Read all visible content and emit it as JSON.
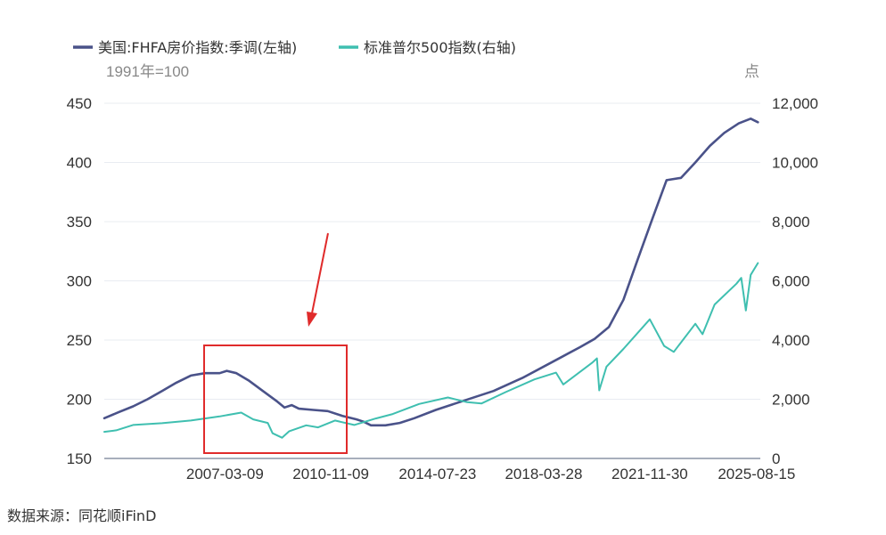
{
  "chart_data": {
    "type": "line",
    "legend_position": "top-left",
    "grid": true,
    "left_axis_unit": "1991年=100",
    "right_axis_unit": "点",
    "left_ylim": [
      150,
      450
    ],
    "left_ticks": [
      "450",
      "400",
      "350",
      "300",
      "250",
      "200",
      "150"
    ],
    "right_ylim": [
      0,
      12000
    ],
    "right_ticks": [
      "12,000",
      "10,000",
      "8,000",
      "6,000",
      "4,000",
      "2,000",
      "0"
    ],
    "x_range": [
      "2003-01-01",
      "2025-10-01"
    ],
    "x_ticks": [
      "2007-03-09",
      "2010-11-09",
      "2014-07-23",
      "2018-03-28",
      "2021-11-30",
      "2025-08-15"
    ],
    "series": [
      {
        "name": "美国:FHFA房价指数:季调(左轴)",
        "axis": "left",
        "color": "#4a5289",
        "points": [
          [
            "2003-01",
            184
          ],
          [
            "2003-07",
            189
          ],
          [
            "2004-01",
            194
          ],
          [
            "2004-07",
            200
          ],
          [
            "2005-01",
            207
          ],
          [
            "2005-07",
            214
          ],
          [
            "2006-01",
            220
          ],
          [
            "2006-07",
            222
          ],
          [
            "2007-01",
            222
          ],
          [
            "2007-04",
            224
          ],
          [
            "2007-08",
            222
          ],
          [
            "2008-01",
            216
          ],
          [
            "2008-07",
            207
          ],
          [
            "2009-01",
            198
          ],
          [
            "2009-04",
            193
          ],
          [
            "2009-07",
            195
          ],
          [
            "2009-10",
            192
          ],
          [
            "2010-04",
            191
          ],
          [
            "2010-10",
            190
          ],
          [
            "2011-04",
            186
          ],
          [
            "2011-10",
            183
          ],
          [
            "2012-01",
            181
          ],
          [
            "2012-04",
            178
          ],
          [
            "2012-10",
            178
          ],
          [
            "2013-04",
            180
          ],
          [
            "2013-10",
            184
          ],
          [
            "2014-07",
            191
          ],
          [
            "2015-07",
            199
          ],
          [
            "2016-07",
            207
          ],
          [
            "2017-07",
            218
          ],
          [
            "2018-07",
            231
          ],
          [
            "2019-07",
            244
          ],
          [
            "2020-01",
            251
          ],
          [
            "2020-07",
            261
          ],
          [
            "2021-01",
            284
          ],
          [
            "2021-07",
            318
          ],
          [
            "2022-01",
            352
          ],
          [
            "2022-07",
            385
          ],
          [
            "2023-01",
            387
          ],
          [
            "2023-07",
            400
          ],
          [
            "2024-01",
            414
          ],
          [
            "2024-07",
            425
          ],
          [
            "2025-01",
            433
          ],
          [
            "2025-06",
            437
          ],
          [
            "2025-09",
            434
          ]
        ]
      },
      {
        "name": "标准普尔500指数(右轴)",
        "axis": "right",
        "color": "#3fbfb0",
        "points": [
          [
            "2003-01",
            900
          ],
          [
            "2003-06",
            950
          ],
          [
            "2004-01",
            1130
          ],
          [
            "2005-01",
            1190
          ],
          [
            "2006-01",
            1280
          ],
          [
            "2007-01",
            1420
          ],
          [
            "2007-10",
            1550
          ],
          [
            "2008-03",
            1320
          ],
          [
            "2008-09",
            1200
          ],
          [
            "2008-11",
            850
          ],
          [
            "2009-03",
            700
          ],
          [
            "2009-06",
            920
          ],
          [
            "2010-01",
            1120
          ],
          [
            "2010-06",
            1050
          ],
          [
            "2011-01",
            1280
          ],
          [
            "2011-09",
            1130
          ],
          [
            "2012-06",
            1350
          ],
          [
            "2013-01",
            1500
          ],
          [
            "2013-12",
            1840
          ],
          [
            "2014-12",
            2060
          ],
          [
            "2015-08",
            1900
          ],
          [
            "2016-02",
            1860
          ],
          [
            "2016-12",
            2240
          ],
          [
            "2017-12",
            2670
          ],
          [
            "2018-09",
            2900
          ],
          [
            "2018-12",
            2500
          ],
          [
            "2019-12",
            3230
          ],
          [
            "2020-02",
            3380
          ],
          [
            "2020-03",
            2300
          ],
          [
            "2020-06",
            3100
          ],
          [
            "2021-01",
            3700
          ],
          [
            "2021-12",
            4700
          ],
          [
            "2022-06",
            3800
          ],
          [
            "2022-10",
            3600
          ],
          [
            "2023-07",
            4550
          ],
          [
            "2023-10",
            4200
          ],
          [
            "2024-03",
            5200
          ],
          [
            "2024-12",
            5900
          ],
          [
            "2025-02",
            6100
          ],
          [
            "2025-04",
            5000
          ],
          [
            "2025-06",
            6200
          ],
          [
            "2025-09",
            6600
          ]
        ]
      }
    ]
  },
  "source_text": "数据来源：同花顺iFinD"
}
